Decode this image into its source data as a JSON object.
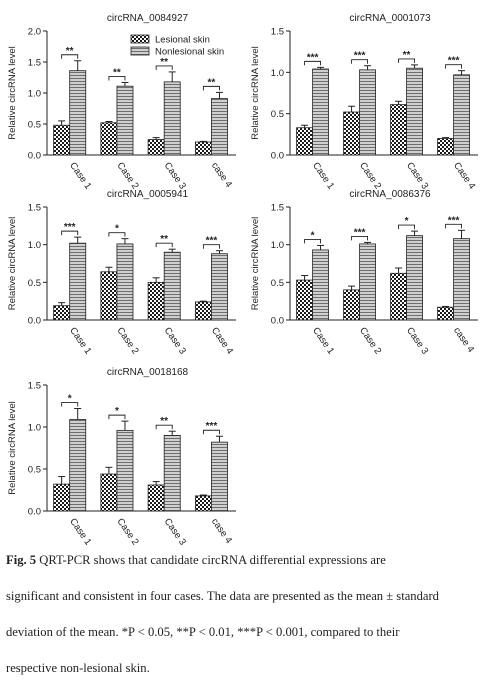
{
  "legend": {
    "items": [
      {
        "label": "Lesional skin",
        "pattern": "checker"
      },
      {
        "label": "Nonlesional skin",
        "pattern": "hatch"
      }
    ]
  },
  "chart_data": [
    {
      "type": "bar",
      "title": "circRNA_0084927",
      "ylabel": "Relative circRNA level",
      "ylim": [
        0,
        2.0
      ],
      "yticks": [
        "0.0",
        "0.5",
        "1.0",
        "1.5",
        "2.0"
      ],
      "categories": [
        "Case 1",
        "Case 2",
        "Case 3",
        "case 4"
      ],
      "series": [
        {
          "name": "Lesional skin",
          "values": [
            0.48,
            0.52,
            0.25,
            0.21
          ],
          "errors": [
            0.07,
            0.02,
            0.03,
            0.01
          ]
        },
        {
          "name": "Nonlesional skin",
          "values": [
            1.36,
            1.11,
            1.18,
            0.91
          ],
          "errors": [
            0.16,
            0.06,
            0.16,
            0.1
          ]
        }
      ],
      "significance": [
        "**",
        "**",
        "**",
        "**"
      ],
      "legend": "top-left"
    },
    {
      "type": "bar",
      "title": "circRNA_0001073",
      "ylabel": "Relative circRNA level",
      "ylim": [
        0,
        1.5
      ],
      "yticks": [
        "0.0",
        "0.5",
        "1.0",
        "1.5"
      ],
      "categories": [
        "Case 1",
        "Case 2",
        "Case 3",
        "Case 4"
      ],
      "series": [
        {
          "name": "Lesional skin",
          "values": [
            0.33,
            0.52,
            0.61,
            0.2
          ],
          "errors": [
            0.03,
            0.07,
            0.04,
            0.01
          ]
        },
        {
          "name": "Nonlesional skin",
          "values": [
            1.04,
            1.03,
            1.05,
            0.97
          ],
          "errors": [
            0.02,
            0.05,
            0.04,
            0.05
          ]
        }
      ],
      "significance": [
        "***",
        "***",
        "**",
        "***"
      ]
    },
    {
      "type": "bar",
      "title": "circRNA_0005941",
      "ylabel": "Relative circRNA level",
      "ylim": [
        0,
        1.5
      ],
      "yticks": [
        "0.0",
        "0.5",
        "1.0",
        "1.5"
      ],
      "categories": [
        "Case 1",
        "Case 2",
        "Case 3",
        "Case 4"
      ],
      "series": [
        {
          "name": "Lesional skin",
          "values": [
            0.19,
            0.64,
            0.5,
            0.24
          ],
          "errors": [
            0.04,
            0.06,
            0.06,
            0.01
          ]
        },
        {
          "name": "Nonlesional skin",
          "values": [
            1.02,
            1.01,
            0.9,
            0.88
          ],
          "errors": [
            0.08,
            0.07,
            0.04,
            0.04
          ]
        }
      ],
      "significance": [
        "***",
        "*",
        "**",
        "***"
      ]
    },
    {
      "type": "bar",
      "title": "circRNA_0086376",
      "ylabel": "Relative circRNA level",
      "ylim": [
        0,
        1.5
      ],
      "yticks": [
        "0.0",
        "0.5",
        "1.0",
        "1.5"
      ],
      "categories": [
        "Case 1",
        "Case 2",
        "Case 3",
        "case 4"
      ],
      "series": [
        {
          "name": "Lesional skin",
          "values": [
            0.53,
            0.4,
            0.62,
            0.17
          ],
          "errors": [
            0.06,
            0.05,
            0.07,
            0.01
          ]
        },
        {
          "name": "Nonlesional skin",
          "values": [
            0.93,
            1.01,
            1.12,
            1.08
          ],
          "errors": [
            0.06,
            0.02,
            0.06,
            0.11
          ]
        }
      ],
      "significance": [
        "*",
        "***",
        "*",
        "***"
      ]
    },
    {
      "type": "bar",
      "title": "circRNA_0018168",
      "ylabel": "Relative circRNA level",
      "ylim": [
        0,
        1.5
      ],
      "yticks": [
        "0.0",
        "0.5",
        "1.0",
        "1.5"
      ],
      "categories": [
        "Case 1",
        "Case 2",
        "Case 3",
        "case 4"
      ],
      "series": [
        {
          "name": "Lesional skin",
          "values": [
            0.32,
            0.44,
            0.31,
            0.18
          ],
          "errors": [
            0.09,
            0.08,
            0.04,
            0.01
          ]
        },
        {
          "name": "Nonlesional skin",
          "values": [
            1.09,
            0.96,
            0.9,
            0.82
          ],
          "errors": [
            0.13,
            0.11,
            0.05,
            0.07
          ]
        }
      ],
      "significance": [
        "*",
        "*",
        "**",
        "***"
      ]
    }
  ],
  "caption": {
    "fig_label": "Fig. 5",
    "line1": "QRT-PCR shows that candidate circRNA differential expressions are",
    "line2": "significant and consistent in four cases. The data are presented as the mean ± standard",
    "line3": "deviation of the mean. *P < 0.05, **P < 0.01, ***P < 0.001, compared to their",
    "line4": "respective non-lesional skin."
  }
}
